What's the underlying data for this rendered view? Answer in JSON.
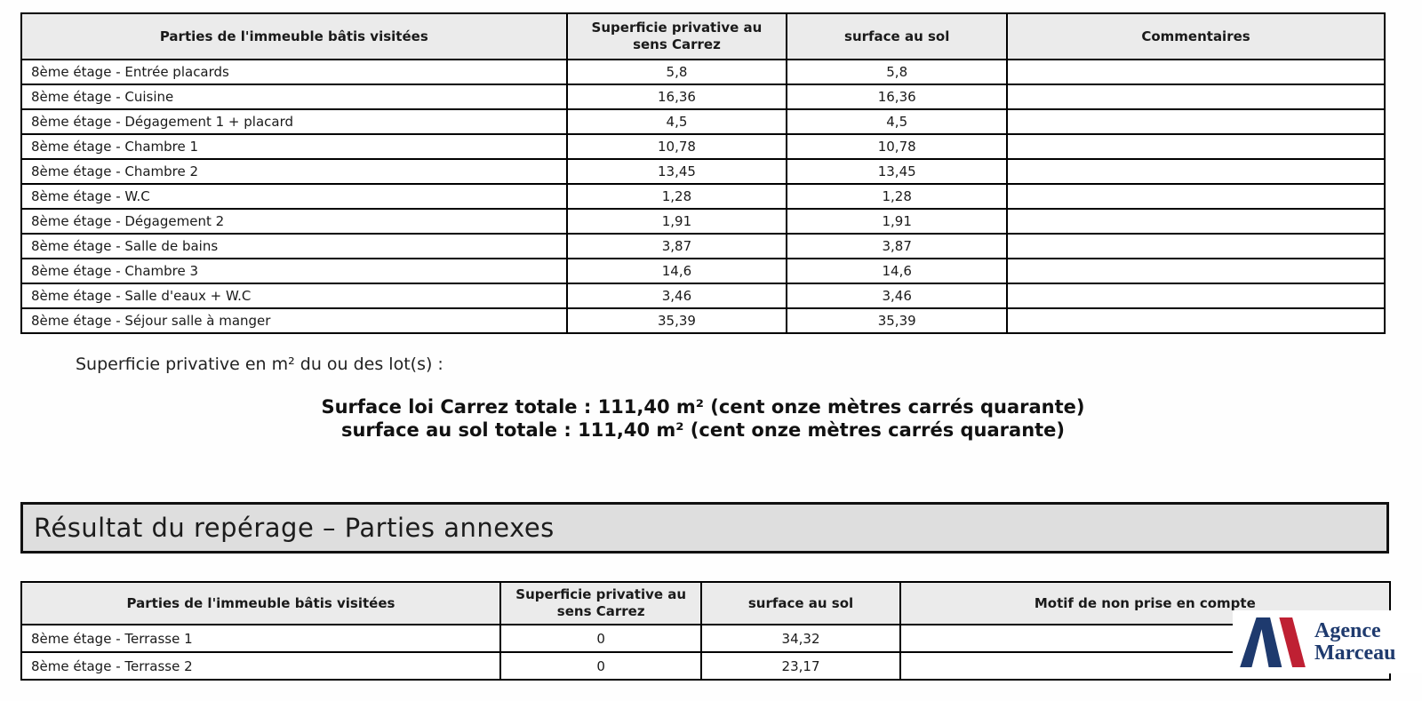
{
  "colors": {
    "table_header_bg": "#ebebeb",
    "section_band_bg": "#dedede",
    "border": "#000000",
    "text": "#1a1a1a",
    "logo_navy": "#1e3a6e",
    "logo_red": "#bf2033"
  },
  "main_table": {
    "headers": [
      "Parties de l'immeuble bâtis visitées",
      "Superficie privative au sens Carrez",
      "surface au sol",
      "Commentaires"
    ],
    "rows": [
      {
        "room": "8ème étage - Entrée placards",
        "carrez": "5,8",
        "sol": "5,8",
        "comment": ""
      },
      {
        "room": "8ème étage - Cuisine",
        "carrez": "16,36",
        "sol": "16,36",
        "comment": ""
      },
      {
        "room": "8ème étage - Dégagement 1 + placard",
        "carrez": "4,5",
        "sol": "4,5",
        "comment": ""
      },
      {
        "room": "8ème étage - Chambre 1",
        "carrez": "10,78",
        "sol": "10,78",
        "comment": ""
      },
      {
        "room": "8ème étage - Chambre 2",
        "carrez": "13,45",
        "sol": "13,45",
        "comment": ""
      },
      {
        "room": "8ème étage - W.C",
        "carrez": "1,28",
        "sol": "1,28",
        "comment": ""
      },
      {
        "room": "8ème étage - Dégagement 2",
        "carrez": "1,91",
        "sol": "1,91",
        "comment": ""
      },
      {
        "room": "8ème étage - Salle de bains",
        "carrez": "3,87",
        "sol": "3,87",
        "comment": ""
      },
      {
        "room": "8ème étage - Chambre 3",
        "carrez": "14,6",
        "sol": "14,6",
        "comment": ""
      },
      {
        "room": "8ème étage - Salle d'eaux + W.C",
        "carrez": "3,46",
        "sol": "3,46",
        "comment": ""
      },
      {
        "room": "8ème étage - Séjour salle à manger",
        "carrez": "35,39",
        "sol": "35,39",
        "comment": ""
      }
    ]
  },
  "summary": {
    "intro": "Superficie privative en m² du ou des lot(s) :",
    "carrez_total_line": "Surface loi Carrez totale : 111,40 m² (cent onze mètres carrés quarante)",
    "sol_total_line": "surface au sol totale : 111,40 m² (cent onze mètres carrés quarante)"
  },
  "annex_section": {
    "title": "Résultat du repérage – Parties annexes"
  },
  "annex_table": {
    "headers": [
      "Parties de l'immeuble bâtis visitées",
      "Superficie privative au sens Carrez",
      "surface au sol",
      "Motif de non prise en compte"
    ],
    "rows": [
      {
        "room": "8ème étage - Terrasse 1",
        "carrez": "0",
        "sol": "34,32",
        "motif": ""
      },
      {
        "room": "8ème étage - Terrasse 2",
        "carrez": "0",
        "sol": "23,17",
        "motif": ""
      }
    ]
  },
  "logo": {
    "line1": "Agence",
    "line2": "Marceau"
  }
}
